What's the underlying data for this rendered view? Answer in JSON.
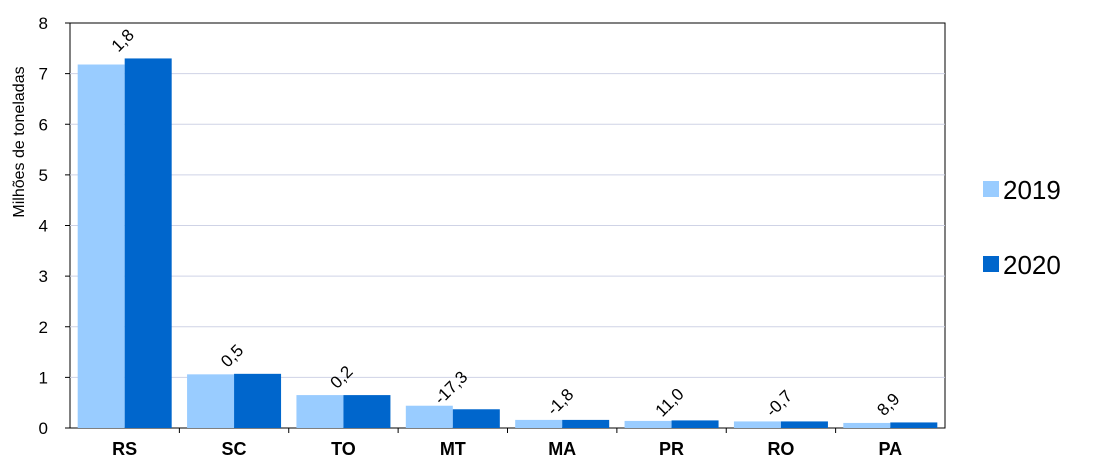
{
  "chart_data": {
    "type": "bar",
    "ylabel": "Milhões de toneladas",
    "xlabel": "",
    "ylim": [
      0,
      8
    ],
    "yticks": [
      "0",
      "1",
      "2",
      "3",
      "4",
      "5",
      "6",
      "7",
      "8"
    ],
    "categories": [
      "RS",
      "SC",
      "TO",
      "MT",
      "MA",
      "PR",
      "RO",
      "PA"
    ],
    "series": [
      {
        "name": "2019",
        "color": "#99CCFF",
        "values": [
          7.18,
          1.06,
          0.65,
          0.44,
          0.16,
          0.14,
          0.13,
          0.1
        ]
      },
      {
        "name": "2020",
        "color": "#0066CC",
        "values": [
          7.3,
          1.07,
          0.65,
          0.37,
          0.16,
          0.15,
          0.13,
          0.11
        ]
      }
    ],
    "data_labels": [
      "1,8",
      "0,5",
      "0,2",
      "-17,3",
      "-1,8",
      "11,0",
      "-0,7",
      "8,9"
    ],
    "grid": true,
    "legend_position": "right"
  }
}
